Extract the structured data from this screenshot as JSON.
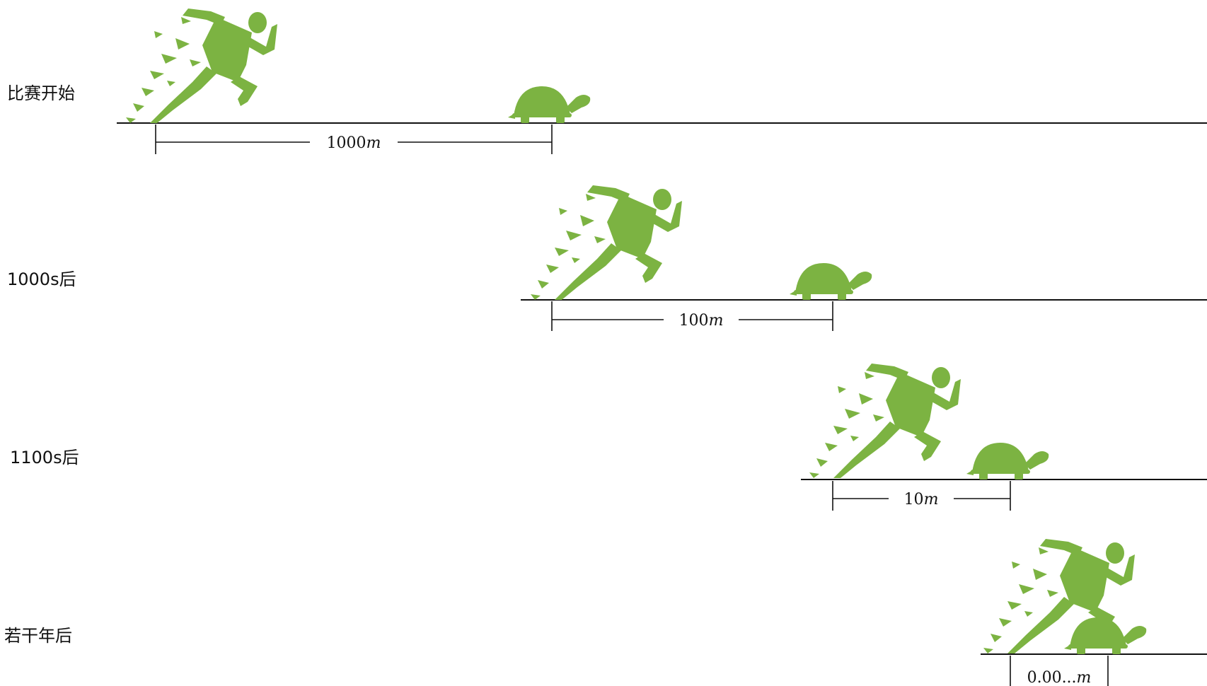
{
  "colors": {
    "figure_green": "#7cb342",
    "line": "#111111",
    "background": "#ffffff"
  },
  "icons": [
    "runner-icon",
    "tortoise-icon"
  ],
  "stages": [
    {
      "label": "比赛开始",
      "distance_value": "1000",
      "distance_unit": "m"
    },
    {
      "label": "1000s后",
      "distance_value": "100",
      "distance_unit": "m"
    },
    {
      "label": "1100s后",
      "distance_value": "10",
      "distance_unit": "m"
    },
    {
      "label": "若干年后",
      "distance_value": "0.00...",
      "distance_unit": "m"
    }
  ]
}
